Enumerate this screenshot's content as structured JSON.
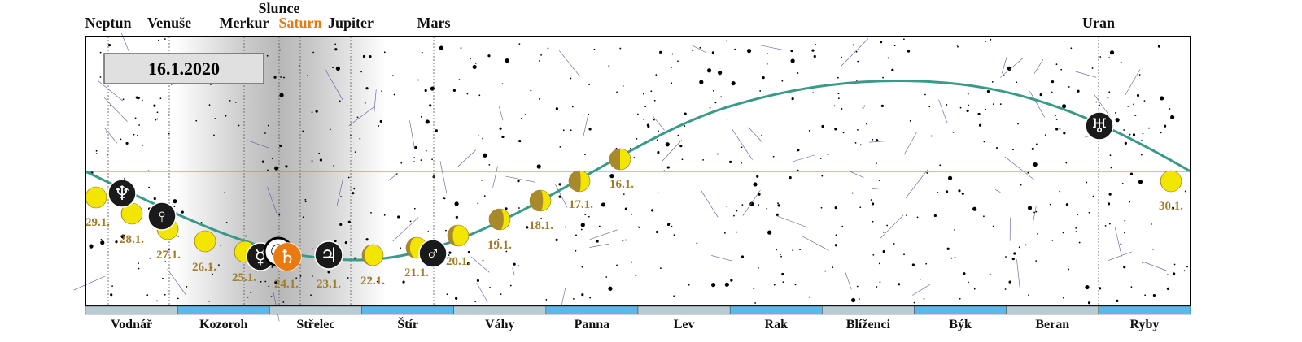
{
  "date": "16.1.2020",
  "planets": [
    {
      "name": "Neptun",
      "symbol": "♆"
    },
    {
      "name": "Venuše",
      "symbol": "♀"
    },
    {
      "name": "Merkur",
      "symbol": "☿"
    },
    {
      "name": "Slunce",
      "symbol": "☉"
    },
    {
      "name": "Saturn",
      "symbol": "♄"
    },
    {
      "name": "Jupiter",
      "symbol": "♃"
    },
    {
      "name": "Mars",
      "symbol": "♂"
    },
    {
      "name": "Uran",
      "symbol": "♅"
    }
  ],
  "moon_labels": [
    "16.1.",
    "17.1.",
    "18.1.",
    "19.1.",
    "20.1.",
    "21.1.",
    "22.1.",
    "23.1.",
    "24.1.",
    "25.1.",
    "26.1.",
    "27.1.",
    "28.1.",
    "29.1.",
    "30.1."
  ],
  "zodiac": [
    "Vodnář",
    "Kozoroh",
    "Střelec",
    "Štír",
    "Váhy",
    "Panna",
    "Lev",
    "Rak",
    "Blíženci",
    "Býk",
    "Beran",
    "Ryby"
  ]
}
